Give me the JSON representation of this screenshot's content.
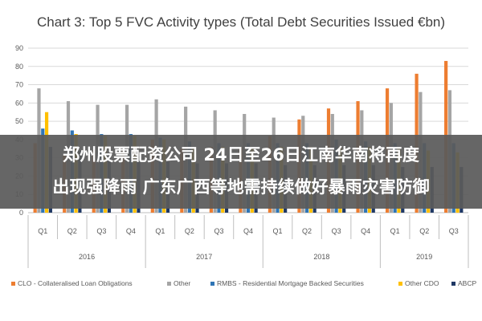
{
  "colors": {
    "overlay": "#5a5a5a",
    "grid": "#d9d9d9",
    "axis": "#bfbfbf"
  },
  "overlay": {
    "line1": "郑州股票配资公司 24日至26日江南华南将再度",
    "line2": "出现强降雨 广东广西等地需持续做好暴雨灾害防御"
  },
  "chart_data": {
    "type": "bar",
    "title": "Chart 3: Top 5 FVC Activity types (Total Debt Securities Issued €bn)",
    "xlabel": "",
    "ylabel": "",
    "ylim": [
      0,
      90
    ],
    "yticks": [
      0,
      10,
      20,
      30,
      40,
      50,
      60,
      70,
      80,
      90
    ],
    "grid": true,
    "legend_position": "bottom",
    "categories": [
      "Q1",
      "Q2",
      "Q3",
      "Q4",
      "Q1",
      "Q2",
      "Q3",
      "Q4",
      "Q1",
      "Q2",
      "Q3",
      "Q4",
      "Q1",
      "Q2",
      "Q3"
    ],
    "groups": [
      {
        "label": "2016",
        "span": 4
      },
      {
        "label": "2017",
        "span": 4
      },
      {
        "label": "2018",
        "span": 4
      },
      {
        "label": "2019",
        "span": 3
      }
    ],
    "series": [
      {
        "name": "CLO - Collateralised Loan Obligations",
        "color": "#ed7d31",
        "values": [
          38,
          32,
          34,
          34,
          40,
          35,
          36,
          36,
          42,
          51,
          57,
          61,
          68,
          76,
          83
        ]
      },
      {
        "name": "Other",
        "color": "#a5a5a5",
        "values": [
          68,
          61,
          59,
          59,
          62,
          58,
          56,
          54,
          52,
          53,
          54,
          56,
          60,
          66,
          67
        ]
      },
      {
        "name": "RMBS - Residential Mortgage Backed Securities",
        "color": "#2f75b5",
        "values": [
          46,
          45,
          43,
          43,
          41,
          39,
          38,
          38,
          38,
          38,
          40,
          39,
          38,
          38,
          38
        ]
      },
      {
        "name": "Other CDO",
        "color": "#ffc000",
        "values": [
          55,
          43,
          42,
          42,
          40,
          36,
          36,
          36,
          36,
          36,
          36,
          36,
          35,
          34,
          33
        ]
      },
      {
        "name": "ABCP",
        "color": "#1f3864",
        "values": [
          36,
          34,
          32,
          31,
          28,
          27,
          27,
          27,
          26,
          26,
          26,
          26,
          25,
          25,
          25
        ]
      }
    ]
  }
}
